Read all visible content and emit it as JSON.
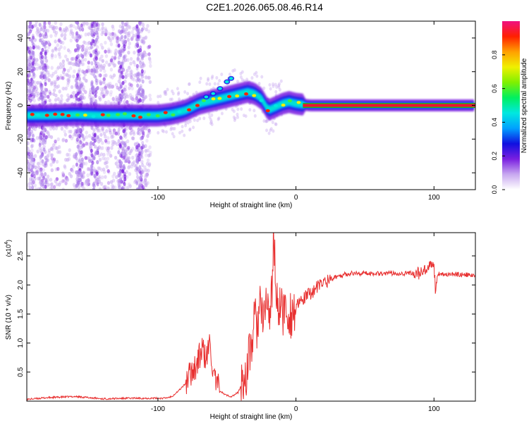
{
  "title": "C2E1.2026.065.08.46.R14",
  "chart_data": [
    {
      "type": "heatmap",
      "xlabel": "Height of straight line (km)",
      "ylabel": "Frequency (Hz)",
      "xlim": [
        -195,
        130
      ],
      "ylim": [
        -50,
        50
      ],
      "xticks": [
        -100,
        0,
        100
      ],
      "yticks": [
        -40,
        -20,
        0,
        20,
        40
      ],
      "colorbar": {
        "label": "Normalized spectral amplitude",
        "range": [
          0,
          1
        ],
        "ticks": [
          "0.0",
          "0.2",
          "0.4",
          "0.6",
          "0.8"
        ],
        "colors": [
          "#ffffff",
          "#c8a8f0",
          "#7a1fe0",
          "#1010e0",
          "#00a0ff",
          "#00e8e0",
          "#00f060",
          "#7ff000",
          "#f0f000",
          "#ffa000",
          "#ff2000",
          "#f01080"
        ]
      },
      "ridge": {
        "x": [
          -195,
          -180,
          -160,
          -140,
          -120,
          -100,
          -90,
          -80,
          -75,
          -70,
          -65,
          -60,
          -55,
          -50,
          -45,
          -40,
          -35,
          -30,
          -25,
          -22,
          -20,
          -18,
          -15,
          -10,
          -5,
          0,
          5,
          10,
          20,
          40,
          60,
          80,
          100,
          130
        ],
        "y": [
          -6,
          -6,
          -5.5,
          -6,
          -6,
          -6,
          -5,
          -3,
          -1,
          1,
          2,
          3,
          4,
          5,
          6,
          7,
          8,
          7,
          4,
          0,
          -3,
          -2,
          -1,
          1,
          2,
          1,
          0.5,
          0,
          0,
          0,
          0,
          0,
          0,
          0
        ]
      }
    },
    {
      "type": "line",
      "xlabel": "Height of straight line (km)",
      "ylabel": "SNR (10 * v/v)",
      "yscale_label": "(x10",
      "yscale_exp": "4",
      "xlim": [
        -195,
        130
      ],
      "ylim": [
        0,
        2.9
      ],
      "xticks": [
        -100,
        0,
        100
      ],
      "yticks": [
        "0.5",
        "1.0",
        "1.5",
        "2.0",
        "2.5"
      ],
      "color": "#e83030",
      "series": [
        {
          "name": "SNR",
          "x": [
            -195,
            -180,
            -160,
            -140,
            -120,
            -100,
            -95,
            -90,
            -85,
            -80,
            -75,
            -72,
            -68,
            -65,
            -62,
            -60,
            -57,
            -55,
            -52,
            -50,
            -47,
            -45,
            -42,
            -40,
            -37,
            -35,
            -32,
            -30,
            -28,
            -26,
            -24,
            -22,
            -20,
            -18,
            -16,
            -14,
            -12,
            -10,
            -8,
            -6,
            -4,
            -2,
            0,
            5,
            10,
            15,
            20,
            25,
            30,
            35,
            40,
            50,
            60,
            70,
            80,
            90,
            95,
            100,
            101,
            103,
            110,
            120,
            130
          ],
          "y": [
            0.03,
            0.06,
            0.08,
            0.04,
            0.05,
            0.05,
            0.05,
            0.08,
            0.18,
            0.3,
            0.55,
            0.62,
            0.9,
            0.7,
            1.05,
            0.4,
            0.25,
            0.18,
            0.12,
            0.1,
            0.08,
            0.1,
            0.15,
            0.25,
            0.4,
            0.6,
            1.0,
            1.4,
            1.3,
            1.7,
            1.2,
            1.8,
            1.5,
            1.6,
            2.9,
            1.6,
            1.7,
            1.5,
            1.6,
            1.5,
            1.5,
            1.55,
            1.6,
            1.75,
            1.85,
            1.95,
            2.05,
            2.1,
            2.15,
            2.18,
            2.2,
            2.2,
            2.2,
            2.2,
            2.2,
            2.2,
            2.25,
            2.35,
            1.95,
            2.2,
            2.18,
            2.18,
            2.16
          ]
        }
      ]
    }
  ]
}
